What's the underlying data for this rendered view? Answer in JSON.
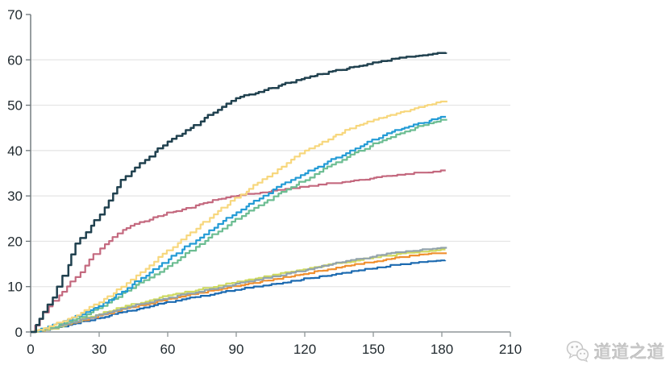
{
  "watermark": {
    "text": "道道之道",
    "icon": "wechat-chat-bubbles"
  },
  "colors": {
    "background": "#ffffff",
    "gridline": "#e4e4e4",
    "y_axis": "#6b7478",
    "x_axis": "#8f9698",
    "tick_label": "#222b30",
    "watermark": "#c8c8c8"
  },
  "chart_data": {
    "type": "line",
    "title": "",
    "subtitle": "",
    "xlabel": "",
    "ylabel": "",
    "legend": "none",
    "grid": "horizontal-only",
    "style": "cumulative-incidence step curves (Kaplan-Meier-like)",
    "xlim": [
      0,
      210
    ],
    "ylim": [
      0,
      70
    ],
    "xticks": [
      0,
      30,
      60,
      90,
      120,
      150,
      180,
      210
    ],
    "yticks": [
      0,
      10,
      20,
      30,
      40,
      50,
      60,
      70
    ],
    "x": [
      0,
      10,
      20,
      30,
      40,
      50,
      60,
      70,
      80,
      90,
      100,
      110,
      120,
      130,
      140,
      150,
      160,
      170,
      180
    ],
    "x_end": 182,
    "series": [
      {
        "name": "dark-navy",
        "color": "#20414f",
        "values": [
          0,
          7.5,
          19.5,
          26.0,
          33.5,
          38.0,
          42.0,
          45.0,
          48.5,
          51.5,
          53.0,
          54.5,
          56.0,
          57.3,
          58.3,
          59.3,
          60.3,
          61.0,
          61.6
        ]
      },
      {
        "name": "yellow",
        "color": "#f7d77d",
        "values": [
          0,
          1.5,
          3.8,
          6.5,
          10.0,
          14.0,
          18.0,
          22.0,
          26.0,
          29.5,
          33.0,
          36.5,
          40.0,
          42.5,
          45.0,
          46.8,
          48.2,
          49.6,
          50.8
        ]
      },
      {
        "name": "cyan-blue",
        "color": "#239bd5",
        "values": [
          0,
          1.5,
          3.5,
          5.8,
          9.0,
          12.5,
          16.0,
          19.5,
          23.0,
          26.5,
          29.5,
          32.5,
          35.0,
          37.5,
          40.0,
          42.5,
          44.5,
          46.0,
          47.3
        ]
      },
      {
        "name": "sea-green",
        "color": "#6cbd92",
        "values": [
          0,
          1.2,
          3.0,
          5.2,
          8.5,
          11.5,
          14.5,
          18.0,
          21.5,
          25.0,
          28.0,
          31.0,
          33.5,
          36.5,
          39.0,
          41.5,
          43.5,
          45.3,
          46.8
        ]
      },
      {
        "name": "rose-pink",
        "color": "#c4697f",
        "values": [
          0,
          7.0,
          12.0,
          18.5,
          22.5,
          24.5,
          26.3,
          27.5,
          29.0,
          30.0,
          30.8,
          31.3,
          32.0,
          32.7,
          33.3,
          34.0,
          34.6,
          35.1,
          35.5
        ]
      },
      {
        "name": "slate-gray",
        "color": "#92a3ab",
        "values": [
          0,
          1.0,
          2.4,
          3.8,
          5.2,
          6.4,
          7.5,
          8.6,
          9.6,
          10.6,
          11.6,
          12.6,
          13.7,
          14.8,
          15.8,
          16.7,
          17.5,
          18.1,
          18.6
        ]
      },
      {
        "name": "lime-green",
        "color": "#ced95f",
        "values": [
          0,
          0.8,
          2.5,
          4.0,
          5.5,
          6.8,
          8.0,
          9.0,
          10.0,
          11.0,
          12.0,
          13.0,
          13.9,
          14.8,
          15.6,
          16.4,
          17.1,
          17.7,
          18.1
        ]
      },
      {
        "name": "orange",
        "color": "#f09030",
        "values": [
          0,
          0.9,
          2.2,
          3.6,
          5.0,
          6.1,
          7.2,
          8.2,
          9.2,
          10.2,
          11.1,
          12.0,
          12.9,
          13.8,
          14.7,
          15.5,
          16.3,
          17.0,
          17.4
        ]
      },
      {
        "name": "dark-blue",
        "color": "#1c6ab0",
        "values": [
          0,
          0.8,
          2.0,
          3.2,
          4.4,
          5.5,
          6.5,
          7.5,
          8.4,
          9.3,
          10.1,
          10.9,
          11.7,
          12.5,
          13.3,
          14.1,
          14.8,
          15.3,
          15.7
        ]
      }
    ]
  }
}
